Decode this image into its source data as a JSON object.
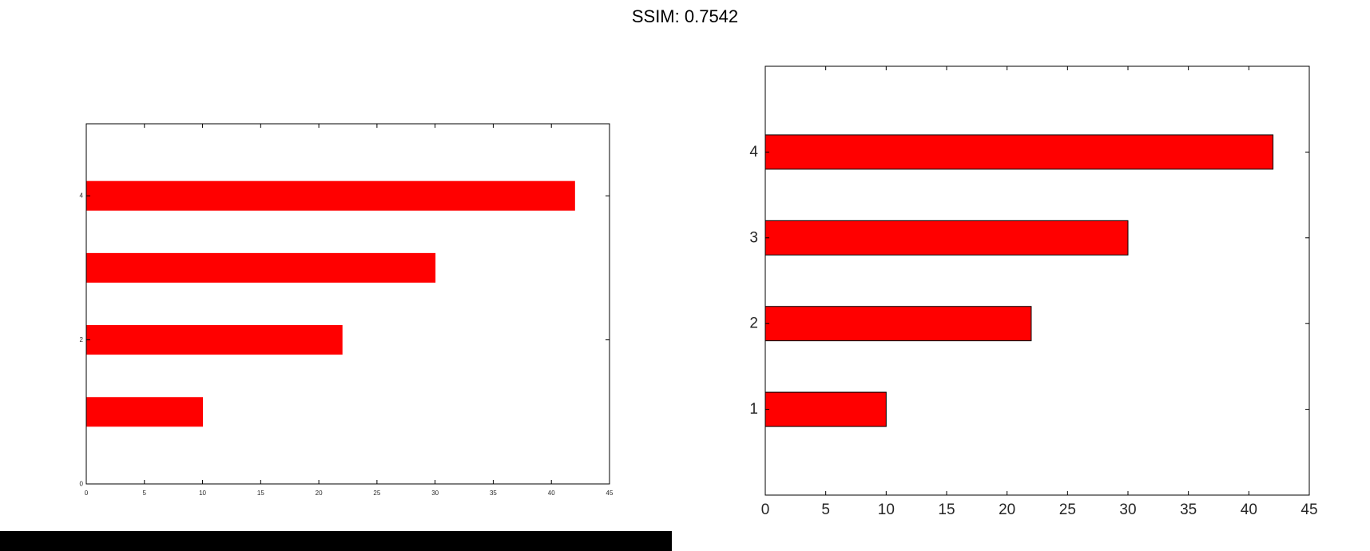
{
  "title": "SSIM: 0.7542",
  "chart_data": [
    {
      "type": "bar",
      "orientation": "horizontal",
      "categories": [
        1,
        2,
        3,
        4
      ],
      "values": [
        10,
        22,
        30,
        42
      ],
      "xlim": [
        0,
        45
      ],
      "ylim": [
        0,
        5
      ],
      "xticks": [
        "0",
        "5",
        "10",
        "15",
        "20",
        "25",
        "30",
        "35",
        "40",
        "45"
      ],
      "yticks": [
        "0",
        "2",
        "4"
      ],
      "xtick_values": [
        0,
        5,
        10,
        15,
        20,
        25,
        30,
        35,
        40,
        45
      ],
      "ytick_values": [
        0,
        2,
        4
      ],
      "bar_color": "#ff0000",
      "bar_edge_color": "#ff0000",
      "grid": false,
      "title": "",
      "xlabel": "",
      "ylabel": ""
    },
    {
      "type": "bar",
      "orientation": "horizontal",
      "categories": [
        1,
        2,
        3,
        4
      ],
      "values": [
        10,
        22,
        30,
        42
      ],
      "xlim": [
        0,
        45
      ],
      "ylim": [
        0,
        5
      ],
      "xticks": [
        "0",
        "5",
        "10",
        "15",
        "20",
        "25",
        "30",
        "35",
        "40",
        "45"
      ],
      "yticks": [
        "1",
        "2",
        "3",
        "4"
      ],
      "xtick_values": [
        0,
        5,
        10,
        15,
        20,
        25,
        30,
        35,
        40,
        45
      ],
      "ytick_values": [
        1,
        2,
        3,
        4
      ],
      "bar_color": "#ff0000",
      "bar_edge_color": "#000000",
      "grid": false,
      "title": "",
      "xlabel": "",
      "ylabel": ""
    }
  ]
}
